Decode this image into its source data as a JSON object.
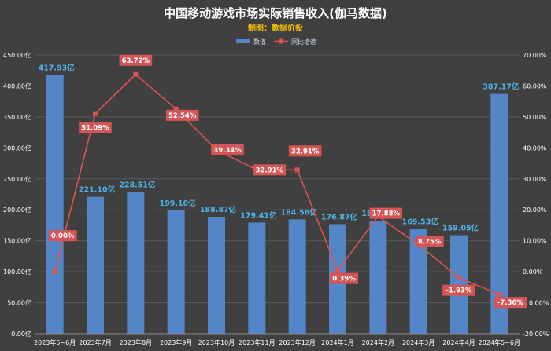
{
  "chart_data": {
    "type": "bar",
    "title": "中国移动游戏市场实际销售收入(伽马数据)",
    "subtitle": "制图：数据价投",
    "categories": [
      "2023年5~6月",
      "2023年7月",
      "2023年8月",
      "2023年9月",
      "2023年10月",
      "2023年11月",
      "2023年12月",
      "2024年1月",
      "2024年2月",
      "2024年3月",
      "2024年4月",
      "2024年5~6月"
    ],
    "series": [
      {
        "name": "数值",
        "type": "bar",
        "axis": "left",
        "color": "#5485c7",
        "values": [
          417.93,
          221.1,
          228.51,
          199.1,
          188.87,
          179.41,
          184.56,
          176.87,
          182.55,
          169.53,
          159.05,
          387.17
        ],
        "labels": [
          "417.93亿",
          "221.10亿",
          "228.51亿",
          "199.10亿",
          "188.87亿",
          "179.41亿",
          "184.56亿",
          "176.87亿",
          "182.55亿",
          "169.53亿",
          "159.05亿",
          "387.17亿"
        ]
      },
      {
        "name": "同比增速",
        "type": "line",
        "axis": "right",
        "color": "#e05252",
        "values": [
          0.0,
          51.09,
          63.72,
          52.54,
          39.34,
          32.91,
          32.91,
          0.39,
          17.88,
          8.75,
          -1.93,
          -7.36
        ],
        "labels": [
          "0.00%",
          "51.09%",
          "63.72%",
          "52.54%",
          "39.34%",
          "32.91%",
          "32.91%",
          "0.39%",
          "17.88%",
          "8.75%",
          "-1.93%",
          "-7.36%"
        ]
      }
    ],
    "y_left": {
      "min": 0,
      "max": 450,
      "ticks": [
        "0.00亿",
        "50.00亿",
        "100.00亿",
        "150.00亿",
        "200.00亿",
        "250.00亿",
        "300.00亿",
        "350.00亿",
        "400.00亿",
        "450.00亿"
      ]
    },
    "y_right": {
      "min": -20,
      "max": 70,
      "ticks": [
        "-20.00%",
        "-10.00%",
        "0.00%",
        "10.00%",
        "20.00%",
        "30.00%",
        "40.00%",
        "50.00%",
        "60.00%",
        "70.00%"
      ]
    },
    "grid": true,
    "legend_position": "top-center",
    "point_marker_color": "#e05252",
    "label_box_color": "#d45555"
  }
}
